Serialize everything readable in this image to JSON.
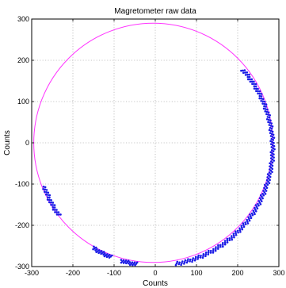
{
  "chart_data": {
    "type": "scatter",
    "title": "Magretometer raw data",
    "xlabel": "Counts",
    "ylabel": "Counts",
    "xlim": [
      -300,
      300
    ],
    "ylim": [
      -300,
      300
    ],
    "xticks": [
      -300,
      -200,
      -100,
      0,
      100,
      200,
      300
    ],
    "yticks": [
      -300,
      -200,
      -100,
      0,
      100,
      200,
      300
    ],
    "grid": true,
    "grid_style": "dotted",
    "colors": {
      "fit_circle": "#ff33ff",
      "data_points": "#1a1ae6"
    },
    "fit_circle": {
      "center": [
        -5,
        0
      ],
      "radius": 290
    },
    "arcs": [
      {
        "center": [
          0,
          -13
        ],
        "radius": 285,
        "start_deg": 42,
        "end_deg": -80,
        "step_deg": 0.5
      },
      {
        "center": [
          0,
          -13
        ],
        "radius": 285,
        "start_deg": -99,
        "end_deg": -107,
        "step_deg": 0.4
      },
      {
        "center": [
          0,
          -13
        ],
        "radius": 285,
        "start_deg": -112,
        "end_deg": -122,
        "step_deg": 0.4
      },
      {
        "center": [
          0,
          -13
        ],
        "radius": 285,
        "start_deg": -145,
        "end_deg": -161,
        "step_deg": 0.5
      }
    ]
  }
}
